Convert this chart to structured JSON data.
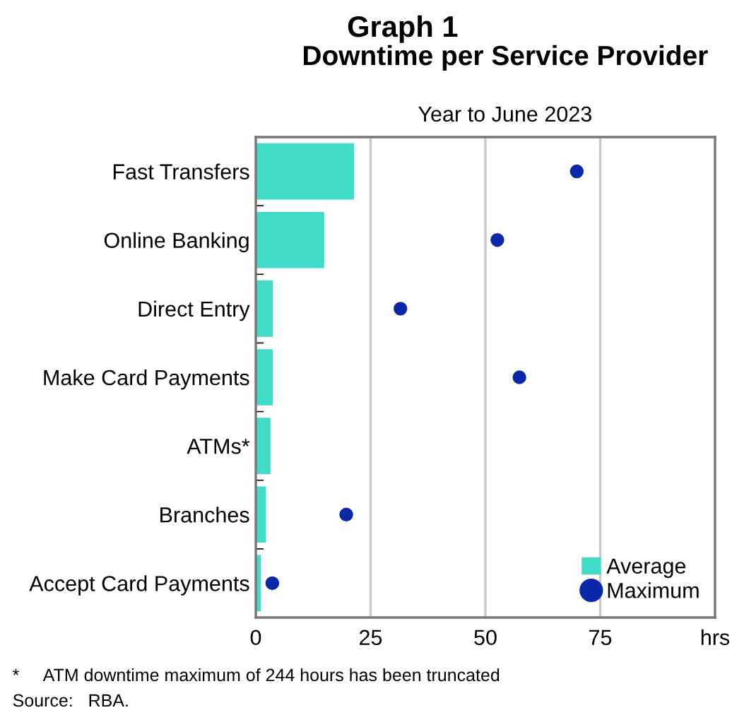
{
  "chart_data": {
    "type": "bar",
    "orientation": "horizontal",
    "title": "Downtime per Service Provider",
    "subtitle": "Year to June 2023",
    "annotations": [
      "Graph 1",
      "*     ATM downtime maximum of 244 hours has been truncated",
      "Source:   RBA."
    ],
    "categories": [
      "Fast Transfers",
      "Online Banking",
      "Direct Entry",
      "Make Card Payments",
      "ATMs*",
      "Branches",
      "Accept Card Payments"
    ],
    "series": [
      {
        "name": "Average",
        "color": "#40dcc8",
        "values": [
          21.4,
          14.9,
          3.7,
          3.7,
          3.2,
          2.2,
          1.1
        ]
      },
      {
        "name": "Maximum",
        "type": "scatter",
        "color": "#0a28a8",
        "marker": "circle",
        "values": [
          69.9,
          52.6,
          31.5,
          57.4,
          null,
          19.7,
          3.6
        ]
      }
    ],
    "xlim": [
      0,
      100
    ],
    "xticks": [
      0,
      25,
      50,
      75,
      {
        "value": 100,
        "label": "hrs"
      }
    ],
    "grid": "x",
    "legend": "bottom right"
  }
}
